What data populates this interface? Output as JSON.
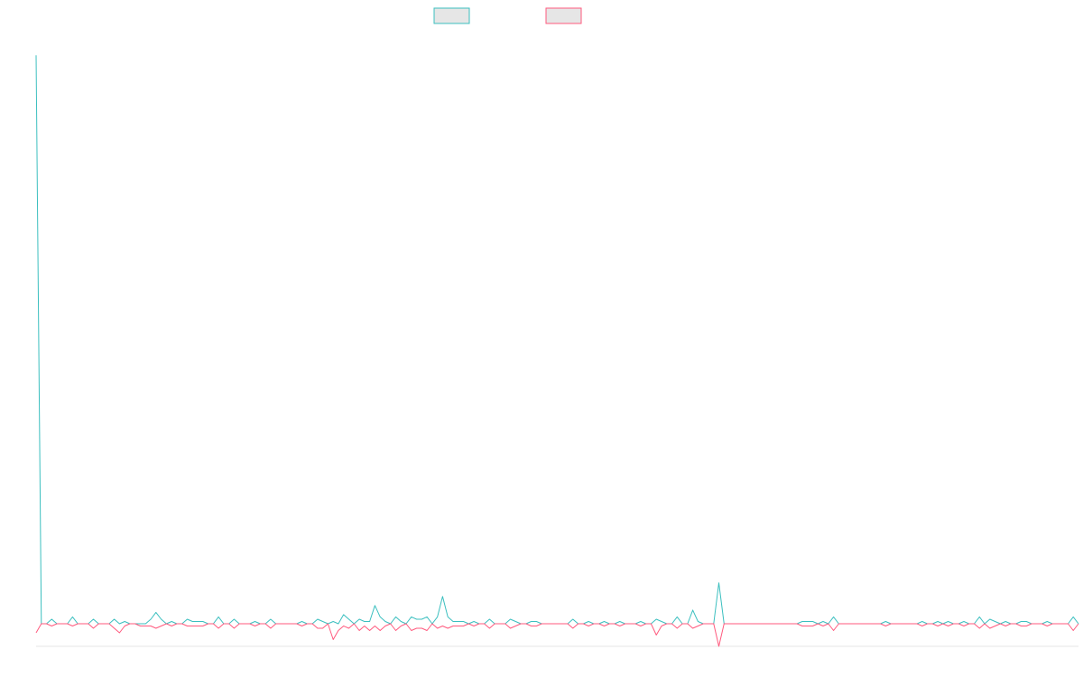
{
  "chart_data": {
    "type": "line",
    "title": "",
    "xlabel": "",
    "ylabel": "",
    "x": [
      0,
      1,
      2,
      3,
      4,
      5,
      6,
      7,
      8,
      9,
      10,
      11,
      12,
      13,
      14,
      15,
      16,
      17,
      18,
      19,
      20,
      21,
      22,
      23,
      24,
      25,
      26,
      27,
      28,
      29,
      30,
      31,
      32,
      33,
      34,
      35,
      36,
      37,
      38,
      39,
      40,
      41,
      42,
      43,
      44,
      45,
      46,
      47,
      48,
      49,
      50,
      51,
      52,
      53,
      54,
      55,
      56,
      57,
      58,
      59,
      60,
      61,
      62,
      63,
      64,
      65,
      66,
      67,
      68,
      69,
      70,
      71,
      72,
      73,
      74,
      75,
      76,
      77,
      78,
      79,
      80,
      81,
      82,
      83,
      84,
      85,
      86,
      87,
      88,
      89,
      90,
      91,
      92,
      93,
      94,
      95,
      96,
      97,
      98,
      99,
      100,
      101,
      102,
      103,
      104,
      105,
      106,
      107,
      108,
      109,
      110,
      111,
      112,
      113,
      114,
      115,
      116,
      117,
      118,
      119,
      120,
      121,
      122,
      123,
      124,
      125,
      126,
      127,
      128,
      129,
      130,
      131,
      132,
      133,
      134,
      135,
      136,
      137,
      138,
      139,
      140,
      141,
      142,
      143,
      144,
      145,
      146,
      147,
      148,
      149,
      150,
      151,
      152,
      153,
      154,
      155,
      156,
      157,
      158,
      159,
      160,
      161,
      162,
      163,
      164,
      165,
      166,
      167,
      168,
      169,
      170,
      171,
      172,
      173,
      174,
      175,
      176,
      177,
      178,
      179,
      180,
      181,
      182,
      183,
      184,
      185,
      186,
      187,
      188,
      189,
      190,
      191,
      192,
      193,
      194,
      195,
      196,
      197,
      198,
      199,
      200
    ],
    "ylim": [
      -1.0,
      26.0
    ],
    "xlim": [
      0,
      200
    ],
    "grid": false,
    "legend_position": "top-center",
    "series": [
      {
        "name": "",
        "color": "#3bbfbf",
        "fill": "#e6e6e6",
        "values": [
          25.0,
          0.0,
          0.0,
          0.2,
          0.0,
          0.0,
          0.0,
          0.3,
          0.0,
          0.0,
          0.0,
          0.2,
          0.0,
          0.0,
          0.0,
          0.2,
          0.0,
          0.1,
          0.0,
          0.0,
          0.0,
          0.0,
          0.2,
          0.5,
          0.2,
          0.0,
          0.1,
          0.0,
          0.0,
          0.2,
          0.1,
          0.1,
          0.1,
          0.0,
          0.0,
          0.3,
          0.0,
          0.0,
          0.2,
          0.0,
          0.0,
          0.0,
          0.1,
          0.0,
          0.0,
          0.2,
          0.0,
          0.0,
          0.0,
          0.0,
          0.0,
          0.1,
          0.0,
          0.0,
          0.2,
          0.1,
          0.0,
          0.1,
          0.0,
          0.4,
          0.2,
          0.0,
          0.2,
          0.1,
          0.1,
          0.8,
          0.3,
          0.1,
          0.0,
          0.3,
          0.1,
          0.0,
          0.3,
          0.2,
          0.2,
          0.3,
          0.0,
          0.3,
          1.2,
          0.3,
          0.1,
          0.1,
          0.1,
          0.0,
          0.1,
          0.0,
          0.0,
          0.2,
          0.0,
          0.0,
          0.0,
          0.2,
          0.1,
          0.0,
          0.0,
          0.1,
          0.1,
          0.0,
          0.0,
          0.0,
          0.0,
          0.0,
          0.0,
          0.2,
          0.0,
          0.0,
          0.1,
          0.0,
          0.0,
          0.1,
          0.0,
          0.0,
          0.1,
          0.0,
          0.0,
          0.0,
          0.1,
          0.0,
          0.0,
          0.2,
          0.1,
          0.0,
          0.0,
          0.3,
          0.0,
          0.0,
          0.6,
          0.1,
          0.0,
          0.0,
          0.0,
          1.8,
          0.0,
          0.0,
          0.0,
          0.0,
          0.0,
          0.0,
          0.0,
          0.0,
          0.0,
          0.0,
          0.0,
          0.0,
          0.0,
          0.0,
          0.0,
          0.1,
          0.1,
          0.1,
          0.0,
          0.1,
          0.0,
          0.3,
          0.0,
          0.0,
          0.0,
          0.0,
          0.0,
          0.0,
          0.0,
          0.0,
          0.0,
          0.1,
          0.0,
          0.0,
          0.0,
          0.0,
          0.0,
          0.0,
          0.1,
          0.0,
          0.0,
          0.1,
          0.0,
          0.1,
          0.0,
          0.0,
          0.1,
          0.0,
          0.0,
          0.3,
          0.0,
          0.2,
          0.1,
          0.0,
          0.1,
          0.0,
          0.0,
          0.1,
          0.1,
          0.0,
          0.0,
          0.0,
          0.1,
          0.0,
          0.0,
          0.0,
          0.0,
          0.3,
          0.0
        ]
      },
      {
        "name": "",
        "color": "#ff5a7e",
        "fill": "#e6e6e6",
        "values": [
          -0.4,
          0.0,
          0.0,
          -0.1,
          0.0,
          0.0,
          0.0,
          -0.1,
          0.0,
          0.0,
          0.0,
          -0.2,
          0.0,
          0.0,
          0.0,
          -0.2,
          -0.4,
          -0.1,
          0.0,
          0.0,
          -0.1,
          -0.1,
          -0.1,
          -0.2,
          -0.1,
          0.0,
          -0.1,
          0.0,
          0.0,
          -0.1,
          -0.1,
          -0.1,
          -0.1,
          0.0,
          0.0,
          -0.2,
          0.0,
          0.0,
          -0.2,
          0.0,
          0.0,
          0.0,
          -0.1,
          0.0,
          0.0,
          -0.2,
          0.0,
          0.0,
          0.0,
          0.0,
          0.0,
          -0.1,
          0.0,
          0.0,
          -0.2,
          -0.2,
          0.0,
          -0.7,
          -0.3,
          -0.1,
          -0.2,
          0.0,
          -0.3,
          -0.1,
          -0.3,
          -0.1,
          -0.3,
          -0.1,
          0.0,
          -0.3,
          -0.1,
          0.0,
          -0.3,
          -0.2,
          -0.2,
          -0.3,
          0.0,
          -0.2,
          -0.1,
          -0.2,
          -0.1,
          -0.1,
          -0.1,
          0.0,
          -0.1,
          0.0,
          0.0,
          -0.2,
          0.0,
          0.0,
          0.0,
          -0.2,
          -0.1,
          0.0,
          0.0,
          -0.1,
          -0.1,
          0.0,
          0.0,
          0.0,
          0.0,
          0.0,
          0.0,
          -0.2,
          0.0,
          0.0,
          -0.1,
          0.0,
          0.0,
          -0.1,
          0.0,
          0.0,
          -0.1,
          0.0,
          0.0,
          0.0,
          -0.1,
          0.0,
          0.0,
          -0.5,
          -0.1,
          0.0,
          0.0,
          -0.2,
          0.0,
          0.0,
          -0.2,
          -0.1,
          0.0,
          0.0,
          0.0,
          -1.0,
          0.0,
          0.0,
          0.0,
          0.0,
          0.0,
          0.0,
          0.0,
          0.0,
          0.0,
          0.0,
          0.0,
          0.0,
          0.0,
          0.0,
          0.0,
          -0.1,
          -0.1,
          -0.1,
          0.0,
          -0.1,
          0.0,
          -0.3,
          0.0,
          0.0,
          0.0,
          0.0,
          0.0,
          0.0,
          0.0,
          0.0,
          0.0,
          -0.1,
          0.0,
          0.0,
          0.0,
          0.0,
          0.0,
          0.0,
          -0.1,
          0.0,
          0.0,
          -0.1,
          0.0,
          -0.1,
          0.0,
          0.0,
          -0.1,
          0.0,
          0.0,
          -0.2,
          0.0,
          -0.2,
          -0.1,
          0.0,
          -0.1,
          0.0,
          0.0,
          -0.1,
          -0.1,
          0.0,
          0.0,
          0.0,
          -0.1,
          0.0,
          0.0,
          0.0,
          0.0,
          -0.3,
          0.0
        ]
      }
    ]
  }
}
